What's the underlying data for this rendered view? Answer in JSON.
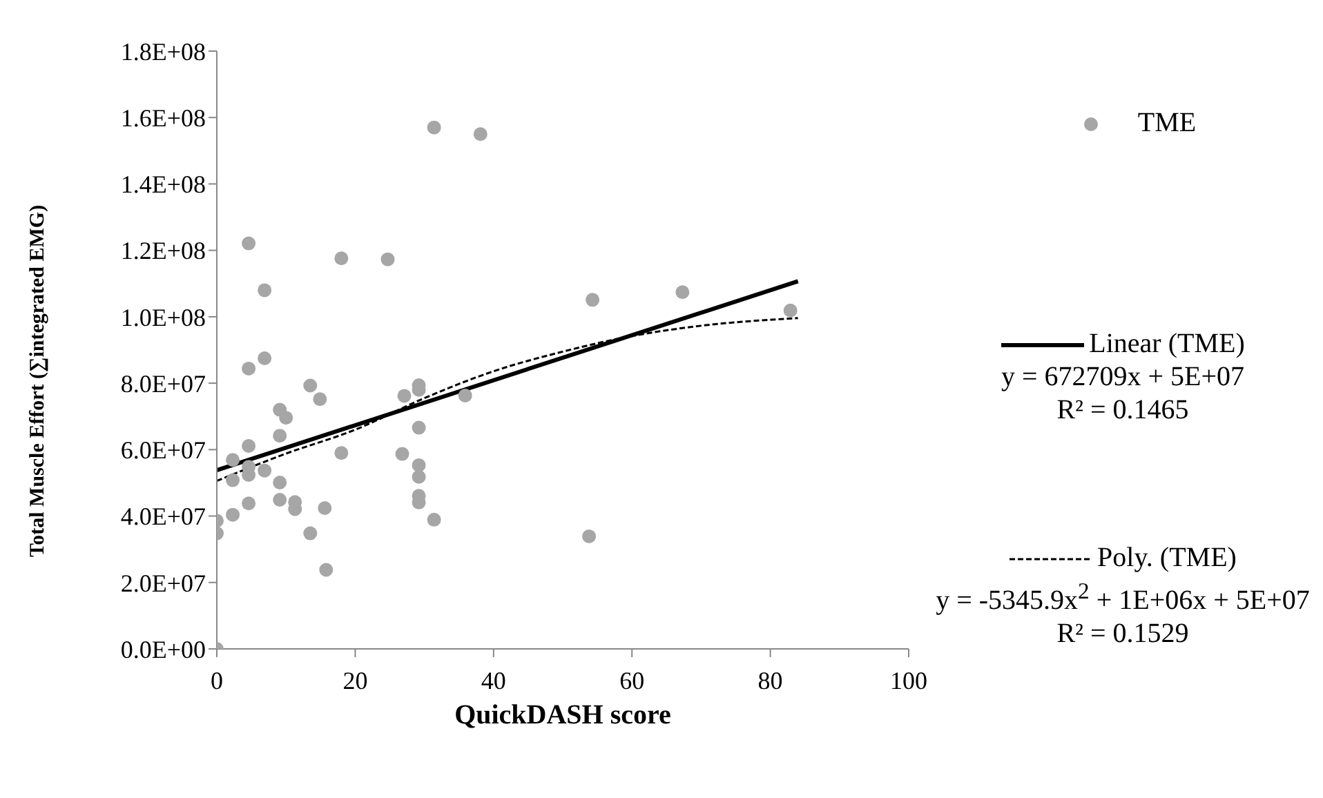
{
  "chart_data": {
    "type": "scatter",
    "xlabel": "QuickDASH score",
    "ylabel": "Total Muscle Effort (∑integrated EMG)",
    "xlim": [
      0,
      100
    ],
    "xticks": [
      0,
      20,
      40,
      60,
      80,
      100
    ],
    "ylim": [
      0,
      180000000
    ],
    "yticks": [
      {
        "value": 0,
        "label": "0.0E+00"
      },
      {
        "value": 20000000,
        "label": "2.0E+07"
      },
      {
        "value": 40000000,
        "label": "4.0E+07"
      },
      {
        "value": 60000000,
        "label": "6.0E+07"
      },
      {
        "value": 80000000,
        "label": "8.0E+07"
      },
      {
        "value": 100000000,
        "label": "1.0E+08"
      },
      {
        "value": 120000000,
        "label": "1.2E+08"
      },
      {
        "value": 140000000,
        "label": "1.4E+08"
      },
      {
        "value": 160000000,
        "label": "1.6E+08"
      },
      {
        "value": 180000000,
        "label": "1.8E+08"
      }
    ],
    "legend": "right",
    "series": [
      {
        "name": "TME",
        "color": "#a6a6a6",
        "marker": "circle",
        "x": [
          0,
          0,
          0,
          4.6,
          18,
          24.7,
          6.9,
          6.9,
          4.6,
          13.5,
          14.9,
          27.1,
          29.2,
          29.2,
          9.1,
          10,
          9.1,
          4.6,
          29.2,
          2.3,
          18,
          26.8,
          4.6,
          4.6,
          2.3,
          6.9,
          9.1,
          29.2,
          29.2,
          9.1,
          11.3,
          11.3,
          4.6,
          2.3,
          15.6,
          29.2,
          29.2,
          31.4,
          13.5,
          15.8,
          31.4,
          38.1,
          54.3,
          67.3,
          82.9,
          53.8,
          35.9
        ],
        "values": [
          0,
          38600000,
          34800000,
          122100000,
          117600000,
          117300000,
          108000000,
          87500000,
          84400000,
          79300000,
          75200000,
          76200000,
          79400000,
          78000000,
          72000000,
          69600000,
          64200000,
          61100000,
          66600000,
          56900000,
          59000000,
          58700000,
          54800000,
          52400000,
          50800000,
          53700000,
          50100000,
          55300000,
          51800000,
          44900000,
          44200000,
          42100000,
          43800000,
          40400000,
          42400000,
          46100000,
          44100000,
          38900000,
          34800000,
          23800000,
          157000000,
          155000000,
          105100000,
          107400000,
          101900000,
          33900000,
          76300000
        ]
      },
      {
        "name": "Linear (TME)",
        "type": "line",
        "color": "#000000",
        "marker": "none",
        "line_style": "solid",
        "x": [
          0,
          84
        ],
        "values": [
          53800000,
          110700000
        ]
      },
      {
        "name": "Poly. (TME)",
        "type": "line",
        "color": "#000000",
        "marker": "none",
        "line_style": "dashed",
        "x": [
          0,
          10,
          20,
          30,
          40,
          50,
          60,
          70,
          84
        ],
        "values": [
          50600000,
          58800000,
          66000000,
          75500000,
          83600000,
          89500000,
          94200000,
          97300000,
          99600000
        ]
      }
    ],
    "annotations": [
      "y = 672709x + 5E+07",
      "R² = 0.1465",
      "y = -5345.9x$^{2}$ + 1E+06x + 5E+07",
      "R² = 0.1529"
    ]
  }
}
